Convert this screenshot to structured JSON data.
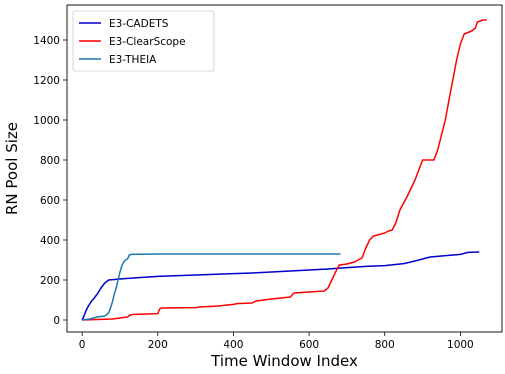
{
  "chart_data": {
    "type": "line",
    "title": "",
    "xlabel": "Time Window Index",
    "ylabel": "RN Pool Size",
    "xlim": [
      -40,
      1110
    ],
    "ylim": [
      -60,
      1575
    ],
    "xticks": [
      0,
      200,
      400,
      600,
      800,
      1000
    ],
    "yticks": [
      0,
      200,
      400,
      600,
      800,
      1000,
      1200,
      1400
    ],
    "grid": false,
    "legend_position": "top-left",
    "series": [
      {
        "name": "E3-CADETS",
        "color": "#0000cc",
        "x": [
          0,
          5,
          10,
          15,
          20,
          25,
          30,
          40,
          50,
          60,
          70,
          100,
          150,
          200,
          300,
          400,
          450,
          500,
          550,
          600,
          650,
          700,
          750,
          800,
          850,
          880,
          900,
          920,
          950,
          1000,
          1010,
          1020,
          1050
        ],
        "y": [
          0,
          20,
          45,
          65,
          80,
          95,
          105,
          130,
          160,
          185,
          200,
          205,
          212,
          218,
          225,
          232,
          235,
          240,
          245,
          250,
          255,
          262,
          268,
          272,
          282,
          295,
          305,
          315,
          320,
          328,
          333,
          338,
          340
        ]
      },
      {
        "name": "E3-ClearScope",
        "color": "#ff0000",
        "x": [
          0,
          50,
          80,
          100,
          120,
          125,
          130,
          140,
          200,
          205,
          210,
          300,
          310,
          360,
          400,
          410,
          450,
          460,
          500,
          550,
          560,
          600,
          640,
          650,
          660,
          670,
          680,
          700,
          720,
          740,
          750,
          760,
          770,
          800,
          810,
          820,
          830,
          840,
          860,
          880,
          900,
          920,
          930,
          940,
          960,
          970,
          980,
          990,
          1000,
          1010,
          1030,
          1040,
          1045,
          1060,
          1070
        ],
        "y": [
          0,
          3,
          5,
          10,
          15,
          22,
          27,
          28,
          32,
          55,
          60,
          62,
          65,
          70,
          78,
          82,
          85,
          95,
          105,
          115,
          135,
          140,
          145,
          160,
          200,
          240,
          275,
          280,
          290,
          310,
          360,
          400,
          420,
          435,
          445,
          450,
          490,
          550,
          620,
          700,
          800,
          800,
          800,
          850,
          1000,
          1100,
          1200,
          1300,
          1380,
          1430,
          1445,
          1460,
          1490,
          1500,
          1500
        ]
      },
      {
        "name": "E3-THEIA",
        "color": "#1f77b4",
        "x": [
          0,
          20,
          30,
          40,
          60,
          70,
          75,
          80,
          85,
          90,
          95,
          100,
          105,
          110,
          115,
          120,
          125,
          130,
          200,
          300,
          400,
          500,
          600,
          683
        ],
        "y": [
          0,
          5,
          10,
          15,
          20,
          35,
          60,
          90,
          130,
          160,
          200,
          240,
          270,
          290,
          300,
          305,
          325,
          328,
          330,
          330,
          330,
          330,
          330,
          330
        ]
      }
    ]
  }
}
